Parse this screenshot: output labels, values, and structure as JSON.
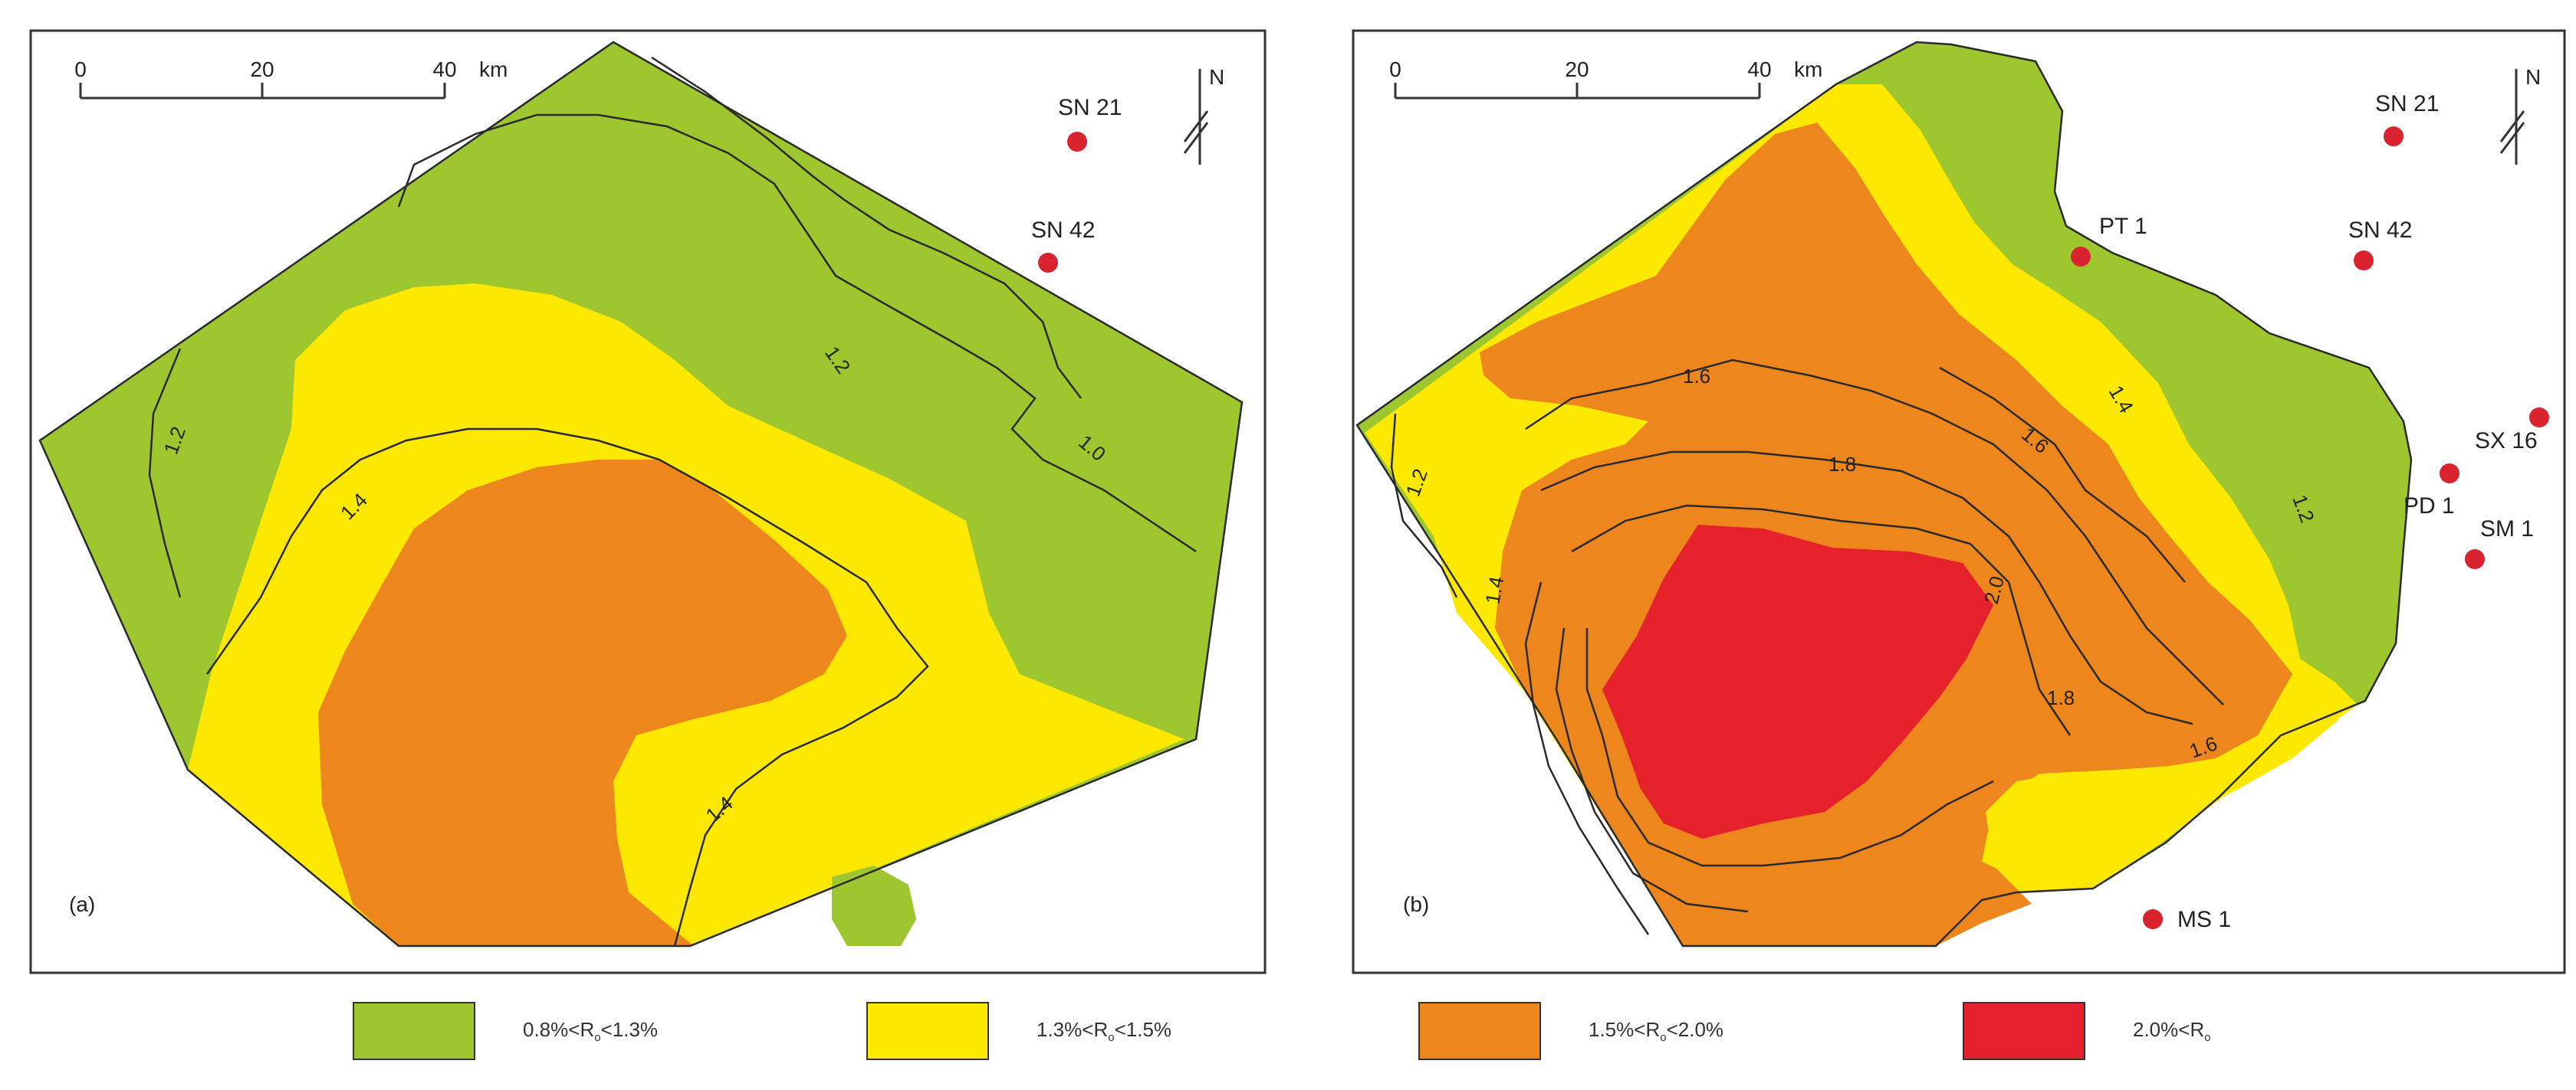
{
  "colors": {
    "green": "#9dc62f",
    "yellow": "#fce800",
    "orange": "#ee861e",
    "red": "#e5212c",
    "well": "#d9232e",
    "contour": "#2a2a2a"
  },
  "scale_bar": {
    "ticks": [
      "0",
      "20",
      "40"
    ],
    "unit": "km"
  },
  "north_label": "N",
  "panels": [
    {
      "id": "a",
      "panel_label": "(a)",
      "wells": [
        "SN 21",
        "SN 42"
      ],
      "contour_labels": [
        "1.2",
        "1.2",
        "1.0",
        "1.4",
        "1.4"
      ]
    },
    {
      "id": "b",
      "panel_label": "(b)",
      "wells": [
        "SN 21",
        "SN 42",
        "PT 1",
        "SX 16",
        "PD 1",
        "SM 1",
        "MS 1"
      ],
      "contour_labels": [
        "1.6",
        "1.4",
        "1.6",
        "1.8",
        "1.2",
        "1.4",
        "1.2",
        "2.0",
        "1.8",
        "1.6"
      ]
    }
  ],
  "legend": [
    {
      "color_key": "green",
      "text": "0.8%<R",
      "sub": "o",
      "text_after": "<1.3%"
    },
    {
      "color_key": "yellow",
      "text": "1.3%<R",
      "sub": "o",
      "text_after": "<1.5%"
    },
    {
      "color_key": "orange",
      "text": "1.5%<R",
      "sub": "o",
      "text_after": "<2.0%"
    },
    {
      "color_key": "red",
      "text": "2.0%<R",
      "sub": "o",
      "text_after": ""
    }
  ]
}
